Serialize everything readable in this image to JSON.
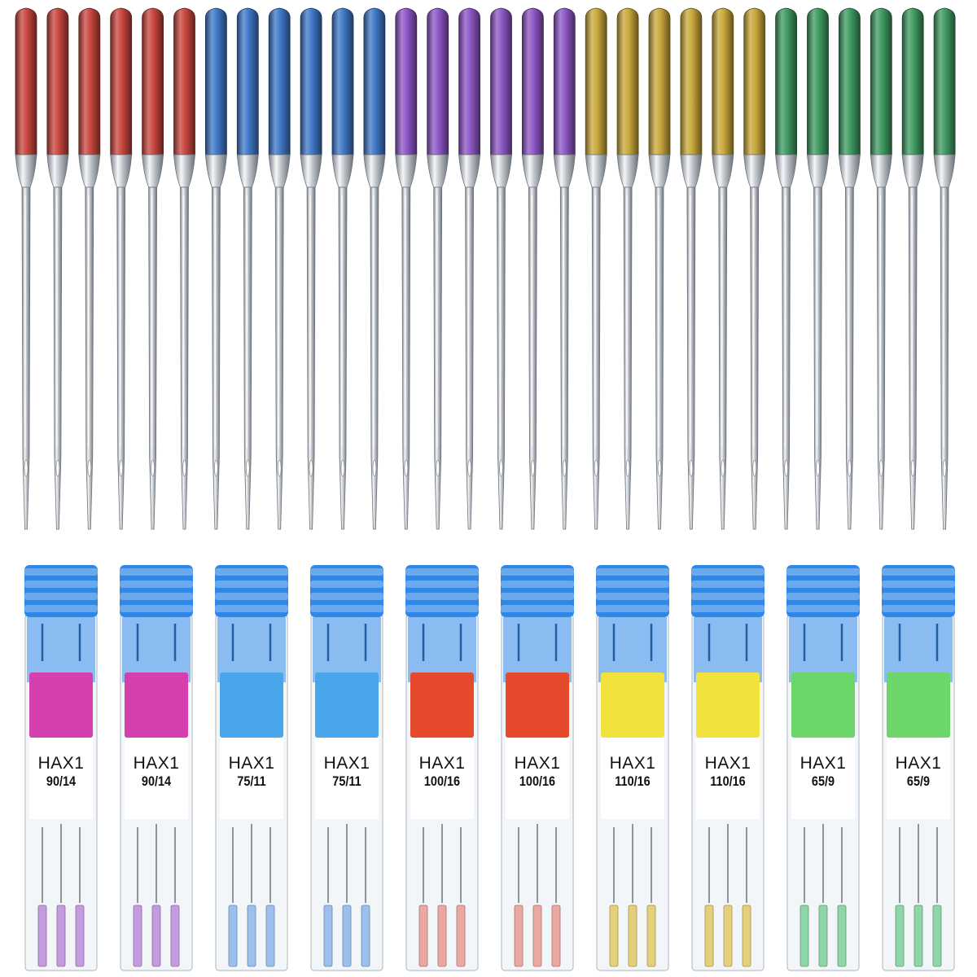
{
  "needle_row": {
    "groups": [
      {
        "color": "#c8463e",
        "count": 6
      },
      {
        "color": "#3f78c8",
        "count": 6
      },
      {
        "color": "#8d56c6",
        "count": 6
      },
      {
        "color": "#c9a83a",
        "count": 6
      },
      {
        "color": "#3f9b62",
        "count": 6
      }
    ]
  },
  "cases": [
    {
      "model": "HAX1",
      "size": "90/14",
      "swatch": "#d63fae",
      "needle_tint": "#c59be0"
    },
    {
      "model": "HAX1",
      "size": "90/14",
      "swatch": "#d63fae",
      "needle_tint": "#c59be0"
    },
    {
      "model": "HAX1",
      "size": "75/11",
      "swatch": "#49a6ea",
      "needle_tint": "#9cc0ee"
    },
    {
      "model": "HAX1",
      "size": "75/11",
      "swatch": "#49a6ea",
      "needle_tint": "#9cc0ee"
    },
    {
      "model": "HAX1",
      "size": "100/16",
      "swatch": "#e64a2c",
      "needle_tint": "#eaa8a0"
    },
    {
      "model": "HAX1",
      "size": "100/16",
      "swatch": "#e64a2c",
      "needle_tint": "#eaa8a0"
    },
    {
      "model": "HAX1",
      "size": "110/16",
      "swatch": "#f2e23e",
      "needle_tint": "#e4d07a"
    },
    {
      "model": "HAX1",
      "size": "110/16",
      "swatch": "#f2e23e",
      "needle_tint": "#e4d07a"
    },
    {
      "model": "HAX1",
      "size": "65/9",
      "swatch": "#6cd66a",
      "needle_tint": "#8ed6a8"
    },
    {
      "model": "HAX1",
      "size": "65/9",
      "swatch": "#6cd66a",
      "needle_tint": "#8ed6a8"
    }
  ],
  "case_cap_color": "#2f88e8"
}
